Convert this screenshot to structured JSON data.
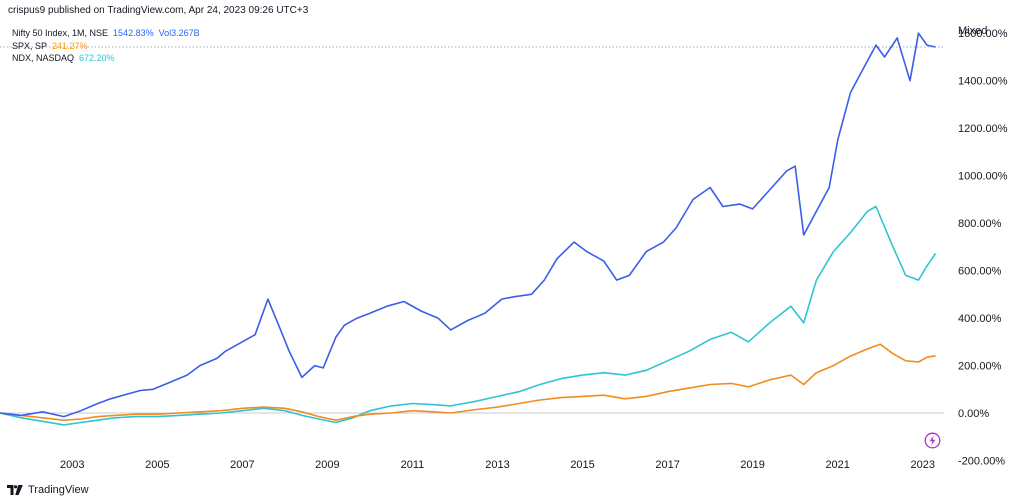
{
  "header": {
    "published": "crispus9 published on TradingView.com, Apr 24, 2023 09:26 UTC+3"
  },
  "legend": [
    {
      "name": "Nifty 50 Index, 1M, NSE",
      "value": "1542.83%",
      "extra": "Vol3.267B",
      "color": "#2962ff"
    },
    {
      "name": "SPX, SP",
      "value": "241.27%",
      "extra": "",
      "color": "#ff9800"
    },
    {
      "name": "NDX, NASDAQ",
      "value": "672.20%",
      "extra": "",
      "color": "#26c6da"
    }
  ],
  "scale_mode": "Mixed",
  "footer": {
    "brand": "TradingView"
  },
  "colors": {
    "nifty": "#3a5ee8",
    "spx": "#f28b20",
    "ndx": "#2ec4d0",
    "zero_line": "#c9cbd1",
    "last_value_line": "#8a8d96",
    "bolt": "#b035c8"
  },
  "icons": {
    "logo": "tradingview-logo-icon",
    "alert": "lightning-bolt-icon"
  },
  "chart_data": {
    "type": "line",
    "title": "",
    "xlabel": "",
    "ylabel": "",
    "x_ticks": [
      "2003",
      "2005",
      "2007",
      "2009",
      "2011",
      "2013",
      "2015",
      "2017",
      "2019",
      "2021",
      "2023"
    ],
    "y_ticks": [
      "-200.00%",
      "0.00%",
      "200.00%",
      "400.00%",
      "600.00%",
      "800.00%",
      "1000.00%",
      "1200.00%",
      "1400.00%",
      "1600.00%"
    ],
    "xlim": [
      2001.3,
      2023.5
    ],
    "ylim": [
      -240,
      1740
    ],
    "grid": false,
    "legend_position": "top-left",
    "series": [
      {
        "name": "Nifty 50 Index, 1M, NSE",
        "color": "#3a5ee8",
        "x": [
          2001.3,
          2001.8,
          2002.3,
          2002.8,
          2003.2,
          2003.6,
          2003.9,
          2004.3,
          2004.6,
          2004.9,
          2005.3,
          2005.7,
          2006.0,
          2006.4,
          2006.6,
          2006.9,
          2007.3,
          2007.6,
          2007.9,
          2008.1,
          2008.4,
          2008.7,
          2008.9,
          2009.2,
          2009.4,
          2009.7,
          2010.0,
          2010.4,
          2010.8,
          2011.2,
          2011.6,
          2011.9,
          2012.3,
          2012.7,
          2013.1,
          2013.4,
          2013.8,
          2014.1,
          2014.4,
          2014.8,
          2015.1,
          2015.5,
          2015.8,
          2016.1,
          2016.5,
          2016.9,
          2017.2,
          2017.6,
          2018.0,
          2018.3,
          2018.7,
          2019.0,
          2019.4,
          2019.8,
          2020.0,
          2020.2,
          2020.5,
          2020.8,
          2021.0,
          2021.3,
          2021.6,
          2021.9,
          2022.1,
          2022.4,
          2022.7,
          2022.9,
          2023.1,
          2023.3
        ],
        "y": [
          0,
          -10,
          5,
          -15,
          10,
          40,
          60,
          80,
          95,
          100,
          130,
          160,
          200,
          230,
          260,
          290,
          330,
          480,
          350,
          260,
          150,
          200,
          190,
          320,
          370,
          400,
          420,
          450,
          470,
          430,
          400,
          350,
          390,
          420,
          480,
          490,
          500,
          560,
          650,
          720,
          680,
          640,
          560,
          580,
          680,
          720,
          780,
          900,
          950,
          870,
          880,
          860,
          940,
          1020,
          1040,
          750,
          850,
          950,
          1150,
          1350,
          1450,
          1550,
          1500,
          1580,
          1400,
          1600,
          1550,
          1542
        ]
      },
      {
        "name": "SPX, SP",
        "color": "#f28b20",
        "x": [
          2001.3,
          2001.8,
          2002.3,
          2002.8,
          2003.2,
          2003.6,
          2004.0,
          2004.5,
          2005.0,
          2005.5,
          2006.0,
          2006.5,
          2007.0,
          2007.5,
          2008.0,
          2008.4,
          2008.8,
          2009.2,
          2009.6,
          2010.0,
          2010.5,
          2011.0,
          2011.5,
          2011.9,
          2012.5,
          2013.0,
          2013.5,
          2014.0,
          2014.5,
          2015.0,
          2015.5,
          2016.0,
          2016.5,
          2017.0,
          2017.5,
          2018.0,
          2018.5,
          2018.9,
          2019.4,
          2019.9,
          2020.2,
          2020.5,
          2020.9,
          2021.3,
          2021.7,
          2022.0,
          2022.3,
          2022.6,
          2022.9,
          2023.1,
          2023.3
        ],
        "y": [
          0,
          -10,
          -20,
          -30,
          -25,
          -15,
          -10,
          -5,
          -5,
          0,
          5,
          10,
          20,
          25,
          20,
          5,
          -15,
          -30,
          -15,
          -5,
          0,
          10,
          5,
          0,
          15,
          25,
          40,
          55,
          65,
          70,
          75,
          60,
          70,
          90,
          105,
          120,
          125,
          110,
          140,
          160,
          120,
          170,
          200,
          240,
          270,
          290,
          250,
          220,
          215,
          235,
          241
        ]
      },
      {
        "name": "NDX, NASDAQ",
        "color": "#2ec4d0",
        "x": [
          2001.3,
          2001.8,
          2002.3,
          2002.8,
          2003.2,
          2003.6,
          2004.0,
          2004.5,
          2005.0,
          2005.5,
          2006.0,
          2006.5,
          2007.0,
          2007.5,
          2008.0,
          2008.4,
          2008.8,
          2009.2,
          2009.6,
          2010.0,
          2010.5,
          2011.0,
          2011.5,
          2011.9,
          2012.5,
          2013.0,
          2013.5,
          2014.0,
          2014.5,
          2015.0,
          2015.5,
          2016.0,
          2016.5,
          2017.0,
          2017.5,
          2018.0,
          2018.5,
          2018.9,
          2019.4,
          2019.9,
          2020.2,
          2020.5,
          2020.9,
          2021.3,
          2021.7,
          2021.9,
          2022.3,
          2022.6,
          2022.9,
          2023.1,
          2023.3
        ],
        "y": [
          0,
          -20,
          -35,
          -50,
          -40,
          -30,
          -20,
          -15,
          -15,
          -10,
          -5,
          0,
          10,
          20,
          10,
          -10,
          -25,
          -40,
          -20,
          10,
          30,
          40,
          35,
          30,
          50,
          70,
          90,
          120,
          145,
          160,
          170,
          160,
          180,
          220,
          260,
          310,
          340,
          300,
          380,
          450,
          380,
          560,
          680,
          760,
          850,
          870,
          700,
          580,
          560,
          620,
          672
        ]
      }
    ]
  }
}
